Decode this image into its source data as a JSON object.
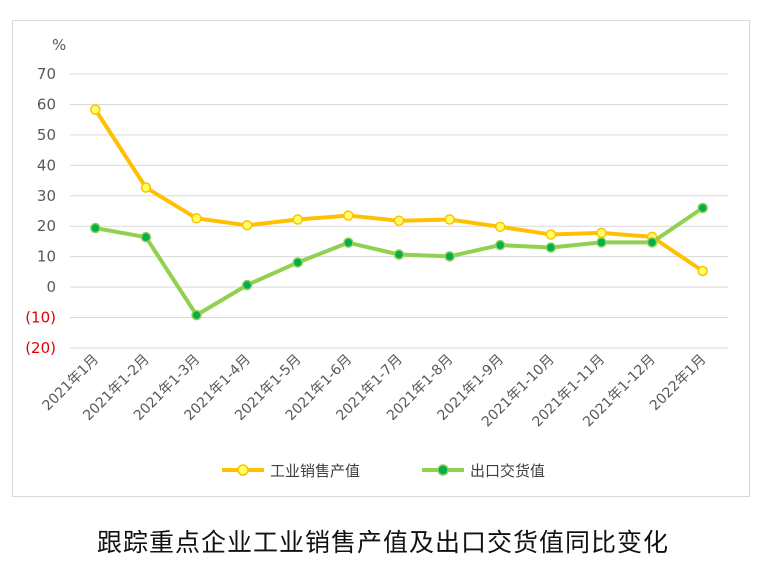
{
  "caption": "跟踪重点企业工业销售产值及出口交货值同比变化",
  "chart_data": {
    "type": "line",
    "unit_label": "%",
    "categories": [
      "2021年1月",
      "2021年1-2月",
      "2021年1-3月",
      "2021年1-4月",
      "2021年1-5月",
      "2021年1-6月",
      "2021年1-7月",
      "2021年1-8月",
      "2021年1-9月",
      "2021年1-10月",
      "2021年1-11月",
      "2021年1-12月",
      "2022年1月"
    ],
    "ylim": [
      -20,
      70
    ],
    "yticks": [
      70,
      60,
      50,
      40,
      30,
      20,
      10,
      0,
      -10,
      -20
    ],
    "ytick_labels": [
      "70",
      "60",
      "50",
      "40",
      "30",
      "20",
      "10",
      "0",
      "(10)",
      "(20)"
    ],
    "negative_tick_color": "#e00000",
    "grid": true,
    "legend_position": "bottom",
    "series": [
      {
        "name": "工业销售产值",
        "color": "#ffc000",
        "marker_fill": "#ffff66",
        "values": [
          58.3,
          32.7,
          22.6,
          20.3,
          22.2,
          23.5,
          21.8,
          22.2,
          19.8,
          17.3,
          17.8,
          16.5,
          5.3
        ]
      },
      {
        "name": "出口交货值",
        "color": "#92d050",
        "marker_fill": "#00b050",
        "values": [
          19.4,
          16.4,
          -9.2,
          0.7,
          8.1,
          14.6,
          10.7,
          10.1,
          13.8,
          13.0,
          14.7,
          14.7,
          26.0
        ]
      }
    ]
  }
}
